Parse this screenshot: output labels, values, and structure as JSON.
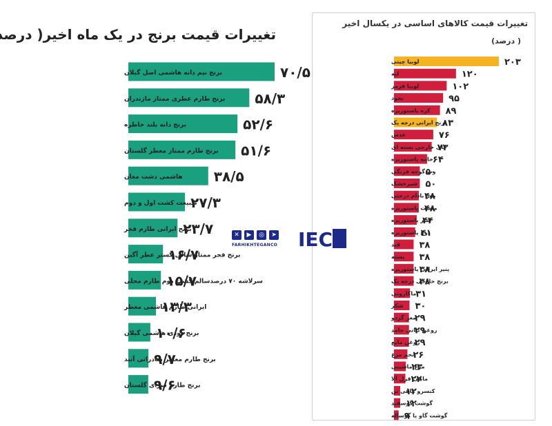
{
  "chart_data": [
    {
      "type": "bar",
      "orientation": "horizontal",
      "title": "تغییرات قیمت برنج در یک ماه اخیر( درصد)",
      "categories": [
        "برنج نیم دانه هاشمی اصل گیلان",
        "برنج طارم عطری ممتاز مازندران",
        "برنج دانه بلند خاطره",
        "برنج طارم ممتاز معطر گلستان",
        "هاشمی دشت مغان",
        "طبیعت کشت اول و دوم",
        "برنج ایرانی طارم فجر",
        "برنج فجر ممتاز شالی گستر عطر آگین",
        "سرلاشه ۷۰ درصدسالم کشت دوم طارم محلی",
        "ایرانی طارم هاشمی معطر",
        "برنج دودی هاشمی گیلان",
        "برنج طارم معطر صادراتی آتید",
        "برنج طارم سرای گلستان"
      ],
      "values": [
        70.5,
        58.3,
        52.6,
        51.6,
        38.5,
        27.3,
        23.7,
        16.7,
        15.7,
        13.3,
        10.6,
        9.7,
        9.6
      ],
      "value_labels": [
        "۷۰/۵",
        "۵۸/۳",
        "۵۲/۶",
        "۵۱/۶",
        "۳۸/۵",
        "۲۷/۳",
        "۲۳/۷",
        "۱۶/۷",
        "۱۵/۷",
        "۱۳/۳",
        "۱۰/۶",
        "۹/۷",
        "۹/۶"
      ],
      "color": "#1aa07f",
      "xlim": [
        0,
        80
      ]
    },
    {
      "type": "bar",
      "orientation": "horizontal",
      "title": "تغییرات قیمت کالاهای اساسی در یکسال اخیر",
      "subtitle": "( درصد)",
      "categories": [
        "لوبیا چیتی",
        "لپه",
        "لوبیا قرمز",
        "نخود",
        "کره پاستوریزه",
        "برنج ایرانی درجه یک",
        "عدس",
        "چای خارجی بسته ای",
        "خامه پاستوریزه",
        "رب گوجه فرنگی",
        "شیرخشک",
        "مغز بادام درختی",
        "ماست پاستوریزه",
        "شیر پاستوریزه",
        "دوغ پاستوریزه",
        "قند",
        "پسته",
        "پنیر ایرانی پاستوریزه",
        "برنج خارجی درجه یک",
        "ماکارونی",
        "شکر",
        "مغز گردو",
        "روغن نباتی جامد",
        "روغن مایع",
        "تخم مرغ",
        "مرغ ماشینی",
        "ماهی قزل آلا",
        "کنسرو ماهی تن",
        "گوشت گوسفند",
        "گوشت گاو یا گوساله"
      ],
      "values": [
        203,
        120,
        102,
        95,
        89,
        83,
        76,
        73,
        64,
        50,
        50,
        48,
        48,
        44,
        41,
        38,
        38,
        38,
        38,
        31,
        30,
        29,
        29,
        29,
        26,
        23,
        22,
        12,
        12,
        9
      ],
      "value_labels": [
        "۲۰۳",
        "۱۲۰",
        "۱۰۲",
        "۹۵",
        "۸۹",
        "۸۳",
        "۷۶",
        "۷۳",
        "۶۴",
        "۵۰",
        "۵۰",
        "۴۸",
        "۴۸",
        "۴۴",
        "۴۱",
        "۳۸",
        "۳۸",
        "۳۸",
        "۳۸",
        "۳۱",
        "۳۰",
        "۲۹",
        "۲۹",
        "۲۹",
        "۲۶",
        "۲۳",
        "۲۲",
        "۱۲",
        "۱۲",
        "۹"
      ],
      "colors": {
        "default": "#d01f3c",
        "highlight": "#f5b324"
      },
      "highlight_categories": [
        "لوبیا چیتی",
        "برنج ایرانی درجه یک"
      ],
      "xlim": [
        0,
        210
      ]
    }
  ],
  "brand": {
    "site": "FARHIKHTEGANCO",
    "logo": "IEC",
    "icons": [
      "x-icon",
      "youtube-icon",
      "instagram-icon",
      "telegram-icon"
    ]
  }
}
